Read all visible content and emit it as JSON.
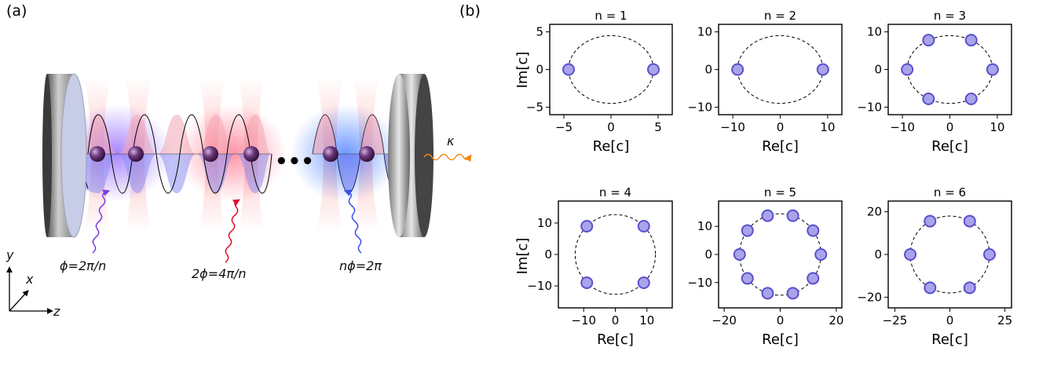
{
  "panel_a": {
    "label": "(a)",
    "phase_labels": [
      "ϕ=2π/n",
      "2ϕ=4π/n",
      "nϕ=2π"
    ],
    "kappa_label": "κ",
    "ellipsis": "•••",
    "axes_labels": {
      "y": "y",
      "x": "x",
      "z": "z"
    },
    "colors": {
      "pump1": "#7b3fe0",
      "pump2": "#e0102a",
      "pump3": "#3a50e8",
      "decay": "#f08a10",
      "atom": "#5a2a6a"
    }
  },
  "panel_b": {
    "label": "(b)",
    "xlabel": "Re[c]",
    "ylabel": "Im[c]",
    "x_tick_labels": [
      [
        "−5",
        "0",
        "5"
      ],
      [
        "−10",
        "0",
        "10"
      ],
      [
        "−10",
        "0",
        "10"
      ],
      [
        "−10",
        "0",
        "10"
      ],
      [
        "−20",
        "0",
        "20"
      ],
      [
        "−25",
        "0",
        "25"
      ]
    ],
    "y_tick_labels": [
      [
        "5",
        "0",
        "−5"
      ],
      [
        "10",
        "0",
        "−10"
      ],
      [
        "10",
        "0",
        "−10"
      ],
      [
        "10",
        "0",
        "−10"
      ],
      [
        "10",
        "0",
        "−10"
      ],
      [
        "20",
        "0",
        "−20"
      ]
    ]
  },
  "chart_data": [
    {
      "type": "scatter",
      "title": "n = 1",
      "xlabel": "Re[c]",
      "ylabel": "Im[c]",
      "xlim": [
        -6.5,
        6.5
      ],
      "ylim": [
        -6,
        6
      ],
      "xticks": [
        -5,
        0,
        5
      ],
      "yticks": [
        -5,
        0,
        5
      ],
      "radius": 4.5,
      "points": {
        "x": [
          -4.5,
          4.5
        ],
        "y": [
          0,
          0
        ]
      }
    },
    {
      "type": "scatter",
      "title": "n = 2",
      "xlabel": "Re[c]",
      "ylabel": "Im[c]",
      "xlim": [
        -13,
        13
      ],
      "ylim": [
        -12,
        12
      ],
      "xticks": [
        -10,
        0,
        10
      ],
      "yticks": [
        -10,
        0,
        10
      ],
      "radius": 9,
      "points": {
        "x": [
          -9,
          9
        ],
        "y": [
          0,
          0
        ]
      }
    },
    {
      "type": "scatter",
      "title": "n = 3",
      "xlabel": "Re[c]",
      "ylabel": "Im[c]",
      "xlim": [
        -13,
        13
      ],
      "ylim": [
        -12,
        12
      ],
      "xticks": [
        -10,
        0,
        10
      ],
      "yticks": [
        -10,
        0,
        10
      ],
      "radius": 9,
      "points": {
        "x": [
          -9,
          -4.5,
          4.5,
          9,
          4.5,
          -4.5
        ],
        "y": [
          0,
          7.8,
          7.8,
          0,
          -7.8,
          -7.8
        ]
      }
    },
    {
      "type": "scatter",
      "title": "n = 4",
      "xlabel": "Re[c]",
      "ylabel": "Im[c]",
      "xlim": [
        -18,
        18
      ],
      "ylim": [
        -17,
        17
      ],
      "xticks": [
        -10,
        0,
        10
      ],
      "yticks": [
        -10,
        0,
        10
      ],
      "radius": 12.7,
      "points": {
        "x": [
          -9,
          9,
          9,
          -9
        ],
        "y": [
          9,
          9,
          -9,
          -9
        ]
      }
    },
    {
      "type": "scatter",
      "title": "n = 5",
      "xlabel": "Re[c]",
      "ylabel": "Im[c]",
      "xlim": [
        -22,
        22
      ],
      "ylim": [
        -19,
        19
      ],
      "xticks": [
        -20,
        0,
        20
      ],
      "yticks": [
        -10,
        0,
        10
      ],
      "radius": 14.5,
      "points": {
        "x": [
          -14.5,
          -11.7,
          -4.5,
          4.5,
          11.7,
          14.5,
          11.7,
          4.5,
          -4.5,
          -11.7
        ],
        "y": [
          0,
          8.5,
          13.8,
          13.8,
          8.5,
          0,
          -8.5,
          -13.8,
          -13.8,
          -8.5
        ]
      }
    },
    {
      "type": "scatter",
      "title": "n = 6",
      "xlabel": "Re[c]",
      "ylabel": "Im[c]",
      "xlim": [
        -28,
        28
      ],
      "ylim": [
        -25,
        25
      ],
      "xticks": [
        -25,
        0,
        25
      ],
      "yticks": [
        -20,
        0,
        20
      ],
      "radius": 18,
      "points": {
        "x": [
          -18,
          -9,
          9,
          18,
          9,
          -9
        ],
        "y": [
          0,
          15.6,
          15.6,
          0,
          -15.6,
          -15.6
        ]
      }
    }
  ]
}
